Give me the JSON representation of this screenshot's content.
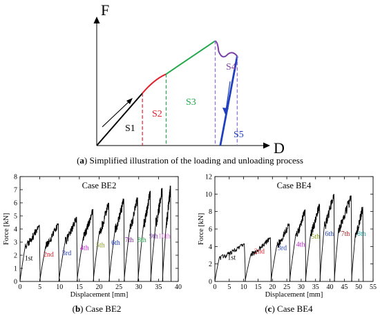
{
  "figure": {
    "panel_a_caption": {
      "tag": "a",
      "text": " Simplified illustration of the loading and unloading process"
    },
    "panel_b_caption": {
      "tag": "b",
      "text": " Case BE2"
    },
    "panel_c_caption": {
      "tag": "c",
      "text": " Case BE4"
    }
  },
  "colors": {
    "black": "#000000",
    "red": "#e0202a",
    "green": "#22a84a",
    "purple": "#7a3fa8",
    "blue": "#1f3fbf",
    "dashed_purple": "#8a6ad6"
  },
  "chart_data": [
    {
      "type": "line",
      "title": "",
      "xlabel": "D",
      "ylabel": "F",
      "stages": [
        {
          "name": "S1",
          "color": "#000000"
        },
        {
          "name": "S2",
          "color": "#e0202a"
        },
        {
          "name": "S3",
          "color": "#22a84a"
        },
        {
          "name": "S4",
          "color": "#7a3fa8"
        },
        {
          "name": "S5",
          "color": "#1f3fbf"
        }
      ],
      "schematic_curve": [
        [
          0,
          0
        ],
        [
          0.27,
          0.41
        ],
        [
          0.41,
          0.56
        ],
        [
          0.7,
          0.82
        ],
        [
          0.73,
          0.72
        ],
        [
          0.78,
          0.72
        ],
        [
          0.83,
          0.7
        ]
      ],
      "unloading_line": [
        [
          0.73,
          0
        ],
        [
          0.83,
          0.7
        ]
      ],
      "stage_boundaries": [
        0.27,
        0.41,
        0.7,
        0.83
      ]
    },
    {
      "type": "line",
      "title": "Case BE2",
      "xlabel": "Displacement [mm]",
      "ylabel": "Force [kN]",
      "xlim": [
        0,
        40
      ],
      "ylim": [
        0,
        8
      ],
      "xticks": [
        "0",
        "5",
        "10",
        "15",
        "20",
        "25",
        "30",
        "35",
        "40"
      ],
      "yticks": [
        "0",
        "1",
        "2",
        "3",
        "4",
        "5",
        "6",
        "7",
        "8"
      ],
      "cycle_labels": [
        {
          "text": "1st",
          "color": "#000000"
        },
        {
          "text": "2nd",
          "color": "#e0202a"
        },
        {
          "text": "3rd",
          "color": "#1f3fbf"
        },
        {
          "text": "4th",
          "color": "#c21fd0"
        },
        {
          "text": "5th",
          "color": "#8aa020"
        },
        {
          "text": "6th",
          "color": "#1f3fbf"
        },
        {
          "text": "7th",
          "color": "#8a1fa0"
        },
        {
          "text": "8th",
          "color": "#22a84a"
        },
        {
          "text": "9th",
          "color": "#7a3fa8"
        },
        {
          "text": "10th",
          "color": "#e07ae0"
        }
      ],
      "label_positions_x": [
        2.2,
        7.2,
        11.8,
        16.3,
        20.3,
        24.2,
        27.6,
        30.8,
        33.8,
        36.5
      ],
      "label_positions_y": [
        1.6,
        1.9,
        2.0,
        2.4,
        2.6,
        2.8,
        3.0,
        3.0,
        3.3,
        3.3
      ],
      "cycles": [
        {
          "start": 0.0,
          "end": 5.0,
          "peak": 4.3,
          "ramp_end": 1.3
        },
        {
          "start": 5.0,
          "end": 9.8,
          "peak": 4.4,
          "ramp_end": 6.5
        },
        {
          "start": 9.8,
          "end": 14.4,
          "peak": 4.9,
          "ramp_end": 11.4
        },
        {
          "start": 14.4,
          "end": 18.5,
          "peak": 5.5,
          "ramp_end": 16.0
        },
        {
          "start": 18.5,
          "end": 22.5,
          "peak": 6.0,
          "ramp_end": 20.0
        },
        {
          "start": 22.5,
          "end": 26.3,
          "peak": 6.3,
          "ramp_end": 24.0
        },
        {
          "start": 26.3,
          "end": 29.8,
          "peak": 6.4,
          "ramp_end": 27.7
        },
        {
          "start": 29.8,
          "end": 33.0,
          "peak": 6.9,
          "ramp_end": 31.2
        },
        {
          "start": 33.0,
          "end": 36.0,
          "peak": 7.1,
          "ramp_end": 34.3
        },
        {
          "start": 36.0,
          "end": 38.1,
          "peak": 7.3,
          "ramp_end": 37.0
        }
      ]
    },
    {
      "type": "line",
      "title": "Case BE4",
      "xlabel": "Displacement [mm]",
      "ylabel": "Force [kN]",
      "xlim": [
        0,
        55
      ],
      "ylim": [
        0,
        12
      ],
      "xticks": [
        "0",
        "5",
        "10",
        "15",
        "20",
        "25",
        "30",
        "35",
        "40",
        "45",
        "50",
        "55"
      ],
      "yticks": [
        "0",
        "2",
        "4",
        "6",
        "8",
        "10",
        "12"
      ],
      "cycle_labels": [
        {
          "text": "1st",
          "color": "#000000"
        },
        {
          "text": "2nd",
          "color": "#e0202a"
        },
        {
          "text": "3rd",
          "color": "#1f3fbf"
        },
        {
          "text": "4th",
          "color": "#c21fd0"
        },
        {
          "text": "5th",
          "color": "#8aa020"
        },
        {
          "text": "6th",
          "color": "#1f3fbf"
        },
        {
          "text": "7th",
          "color": "#b01a1a"
        },
        {
          "text": "8th",
          "color": "#2aa0a0"
        }
      ],
      "label_positions_x": [
        5.8,
        15.5,
        23.4,
        29.8,
        35.0,
        39.8,
        45.4,
        51.0
      ],
      "label_positions_y": [
        2.5,
        3.2,
        3.6,
        4.0,
        4.9,
        5.2,
        5.2,
        5.2
      ],
      "cycles": [
        {
          "start": 0.0,
          "end": 10.5,
          "peak": 4.3,
          "ramp_end": 1.5
        },
        {
          "start": 10.5,
          "end": 19.5,
          "peak": 5.0,
          "ramp_end": 12.5
        },
        {
          "start": 19.5,
          "end": 26.0,
          "peak": 6.6,
          "ramp_end": 21.5
        },
        {
          "start": 26.0,
          "end": 31.5,
          "peak": 8.2,
          "ramp_end": 28.0
        },
        {
          "start": 31.5,
          "end": 36.5,
          "peak": 8.8,
          "ramp_end": 33.3
        },
        {
          "start": 36.5,
          "end": 41.5,
          "peak": 10.0,
          "ramp_end": 38.0
        },
        {
          "start": 41.5,
          "end": 47.5,
          "peak": 9.8,
          "ramp_end": 43.0
        },
        {
          "start": 47.5,
          "end": 51.5,
          "peak": 8.5,
          "ramp_end": 48.8
        }
      ]
    }
  ]
}
